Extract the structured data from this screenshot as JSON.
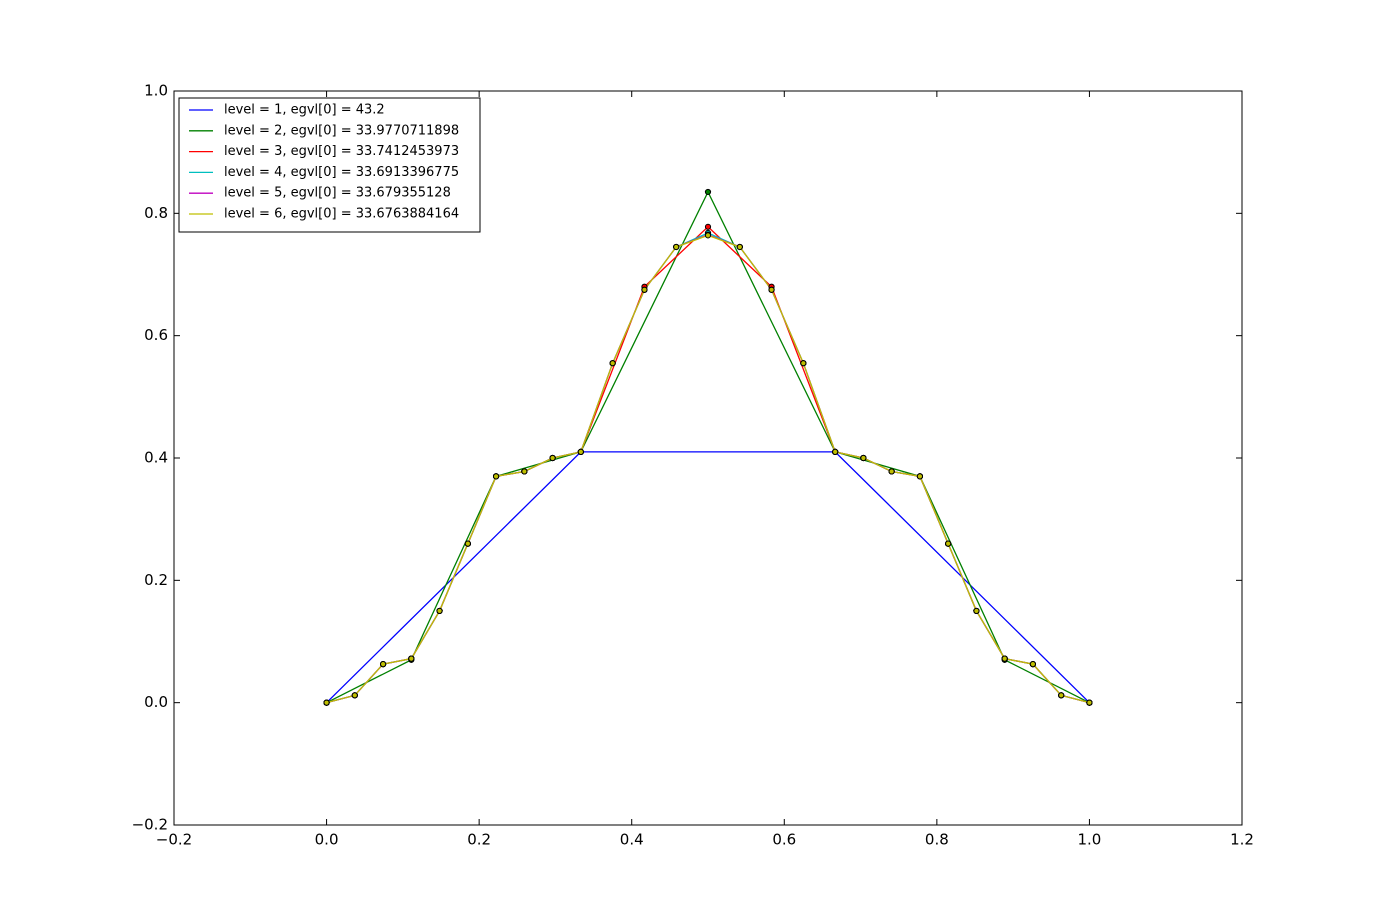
{
  "chart_data": {
    "type": "line",
    "xlim": [
      -0.2,
      1.2
    ],
    "ylim": [
      -0.2,
      1.0
    ],
    "xticks": [
      {
        "value": -0.2,
        "label": "−0.2"
      },
      {
        "value": 0,
        "label": "0.0"
      },
      0.2,
      0.4,
      0.6,
      0.8,
      {
        "value": 1,
        "label": "1.0"
      },
      1.2
    ],
    "yticks": [
      {
        "value": -0.2,
        "label": "−0.2"
      },
      {
        "value": 0,
        "label": "0.0"
      },
      0.2,
      0.4,
      0.6,
      0.8,
      {
        "value": 1,
        "label": "1.0"
      }
    ],
    "legend": "upper left",
    "grid": false,
    "series": [
      {
        "name": "level = 1, egvl[0] = 43.2",
        "color": "#0000ff",
        "x": [
          0,
          0.3333,
          0.6667,
          1
        ],
        "values": [
          0,
          0.41,
          0.41,
          0
        ]
      },
      {
        "name": "level = 2, egvl[0] = 33.9770711898",
        "color": "#008000",
        "x": [
          0,
          0.1111,
          0.2222,
          0.3333,
          0.5,
          0.6667,
          0.7778,
          0.8889,
          1
        ],
        "values": [
          0,
          0.07,
          0.37,
          0.41,
          0.835,
          0.41,
          0.37,
          0.07,
          0
        ]
      },
      {
        "name": "level = 3, egvl[0] = 33.7412453973",
        "color": "#ff0000",
        "x": [
          0,
          0.037,
          0.0741,
          0.1111,
          0.1481,
          0.1852,
          0.2222,
          0.2593,
          0.2963,
          0.3333,
          0.4167,
          0.5,
          0.5833,
          0.6667,
          0.7037,
          0.7407,
          0.7778,
          0.8148,
          0.8519,
          0.8889,
          0.9259,
          0.963,
          1
        ],
        "values": [
          0,
          0.012,
          0.063,
          0.072,
          0.15,
          0.26,
          0.37,
          0.378,
          0.4,
          0.41,
          0.68,
          0.778,
          0.68,
          0.41,
          0.4,
          0.378,
          0.37,
          0.26,
          0.15,
          0.072,
          0.063,
          0.012,
          0
        ]
      },
      {
        "name": "level = 4, egvl[0] = 33.6913396775",
        "color": "#00bfbf",
        "x": [
          0,
          0.037,
          0.0741,
          0.1111,
          0.1481,
          0.1852,
          0.2222,
          0.2593,
          0.2963,
          0.3333,
          0.375,
          0.4167,
          0.4583,
          0.5,
          0.5417,
          0.5833,
          0.625,
          0.6667,
          0.7037,
          0.7407,
          0.7778,
          0.8148,
          0.8519,
          0.8889,
          0.9259,
          0.963,
          1
        ],
        "values": [
          0,
          0.012,
          0.063,
          0.072,
          0.15,
          0.26,
          0.37,
          0.378,
          0.4,
          0.41,
          0.555,
          0.675,
          0.745,
          0.768,
          0.745,
          0.675,
          0.555,
          0.41,
          0.4,
          0.378,
          0.37,
          0.26,
          0.15,
          0.072,
          0.063,
          0.012,
          0
        ]
      },
      {
        "name": "level = 5, egvl[0] = 33.679355128",
        "color": "#bf00bf",
        "x": [
          0,
          0.037,
          0.0741,
          0.1111,
          0.1481,
          0.1852,
          0.2222,
          0.2593,
          0.2963,
          0.3333,
          0.375,
          0.4167,
          0.4583,
          0.5,
          0.5417,
          0.5833,
          0.625,
          0.6667,
          0.7037,
          0.7407,
          0.7778,
          0.8148,
          0.8519,
          0.8889,
          0.9259,
          0.963,
          1
        ],
        "values": [
          0,
          0.012,
          0.063,
          0.072,
          0.15,
          0.26,
          0.37,
          0.378,
          0.4,
          0.41,
          0.555,
          0.675,
          0.745,
          0.765,
          0.745,
          0.675,
          0.555,
          0.41,
          0.4,
          0.378,
          0.37,
          0.26,
          0.15,
          0.072,
          0.063,
          0.012,
          0
        ]
      },
      {
        "name": "level = 6, egvl[0] = 33.6763884164",
        "color": "#bfbf00",
        "x": [
          0,
          0.037,
          0.0741,
          0.1111,
          0.1481,
          0.1852,
          0.2222,
          0.2593,
          0.2963,
          0.3333,
          0.375,
          0.4167,
          0.4583,
          0.5,
          0.5417,
          0.5833,
          0.625,
          0.6667,
          0.7037,
          0.7407,
          0.7778,
          0.8148,
          0.8519,
          0.8889,
          0.9259,
          0.963,
          1
        ],
        "values": [
          0,
          0.012,
          0.063,
          0.072,
          0.15,
          0.26,
          0.37,
          0.378,
          0.4,
          0.41,
          0.555,
          0.675,
          0.745,
          0.764,
          0.745,
          0.675,
          0.555,
          0.41,
          0.4,
          0.378,
          0.37,
          0.26,
          0.15,
          0.072,
          0.063,
          0.012,
          0
        ]
      }
    ]
  }
}
